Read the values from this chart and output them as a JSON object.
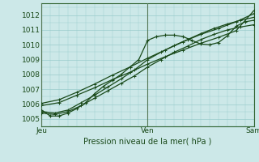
{
  "xlabel": "Pression niveau de la mer( hPa )",
  "bg_color": "#cce8e8",
  "plot_bg_color": "#cce8e8",
  "grid_color": "#99cccc",
  "line_color": "#1a4a1a",
  "spine_color": "#336633",
  "ylim": [
    1004.5,
    1012.8
  ],
  "xlim": [
    0,
    48
  ],
  "xticks": [
    0,
    24,
    48
  ],
  "xticklabels": [
    "Jeu",
    "Ven",
    "Sam"
  ],
  "yticks": [
    1005,
    1006,
    1007,
    1008,
    1009,
    1010,
    1011,
    1012
  ],
  "vline_color": "#557755",
  "line1_x": [
    0,
    2,
    4,
    6,
    8,
    10,
    12,
    14,
    16,
    18,
    20,
    22,
    24,
    26,
    28,
    30,
    32,
    34,
    36,
    38,
    40,
    42,
    44,
    46,
    48
  ],
  "line1_y": [
    1005.6,
    1005.2,
    1005.2,
    1005.4,
    1005.7,
    1006.1,
    1006.7,
    1007.2,
    1007.6,
    1008.0,
    1008.5,
    1009.0,
    1010.3,
    1010.55,
    1010.65,
    1010.65,
    1010.55,
    1010.3,
    1010.05,
    1010.0,
    1010.15,
    1010.6,
    1011.25,
    1011.55,
    1011.65
  ],
  "line2_x": [
    0,
    3,
    6,
    9,
    12,
    15,
    18,
    21,
    24,
    27,
    30,
    33,
    36,
    39,
    42,
    45,
    48
  ],
  "line2_y": [
    1005.4,
    1005.3,
    1005.5,
    1005.9,
    1006.4,
    1006.9,
    1007.4,
    1007.9,
    1008.5,
    1009.0,
    1009.5,
    1009.9,
    1010.35,
    1010.7,
    1011.0,
    1011.2,
    1011.35
  ],
  "line3_x": [
    0,
    3,
    6,
    9,
    12,
    15,
    18,
    21,
    24,
    27,
    30,
    33,
    36,
    39,
    42,
    45,
    48
  ],
  "line3_y": [
    1005.5,
    1005.4,
    1005.6,
    1006.1,
    1006.6,
    1007.15,
    1007.7,
    1008.3,
    1009.0,
    1009.5,
    1009.95,
    1010.35,
    1010.75,
    1011.1,
    1011.4,
    1011.65,
    1011.85
  ],
  "line4_x": [
    0,
    4,
    8,
    12,
    16,
    20,
    24,
    28,
    32,
    36,
    40,
    44,
    48
  ],
  "line4_y": [
    1006.05,
    1006.3,
    1006.8,
    1007.35,
    1007.95,
    1008.5,
    1009.1,
    1009.65,
    1010.2,
    1010.7,
    1011.1,
    1011.55,
    1012.1
  ],
  "line5_x": [
    0,
    4,
    8,
    12,
    16,
    20,
    24,
    28,
    32,
    36,
    40,
    44,
    48
  ],
  "line5_y": [
    1005.9,
    1006.1,
    1006.6,
    1007.1,
    1007.65,
    1008.15,
    1008.7,
    1009.2,
    1009.65,
    1010.1,
    1010.5,
    1010.95,
    1012.3
  ]
}
